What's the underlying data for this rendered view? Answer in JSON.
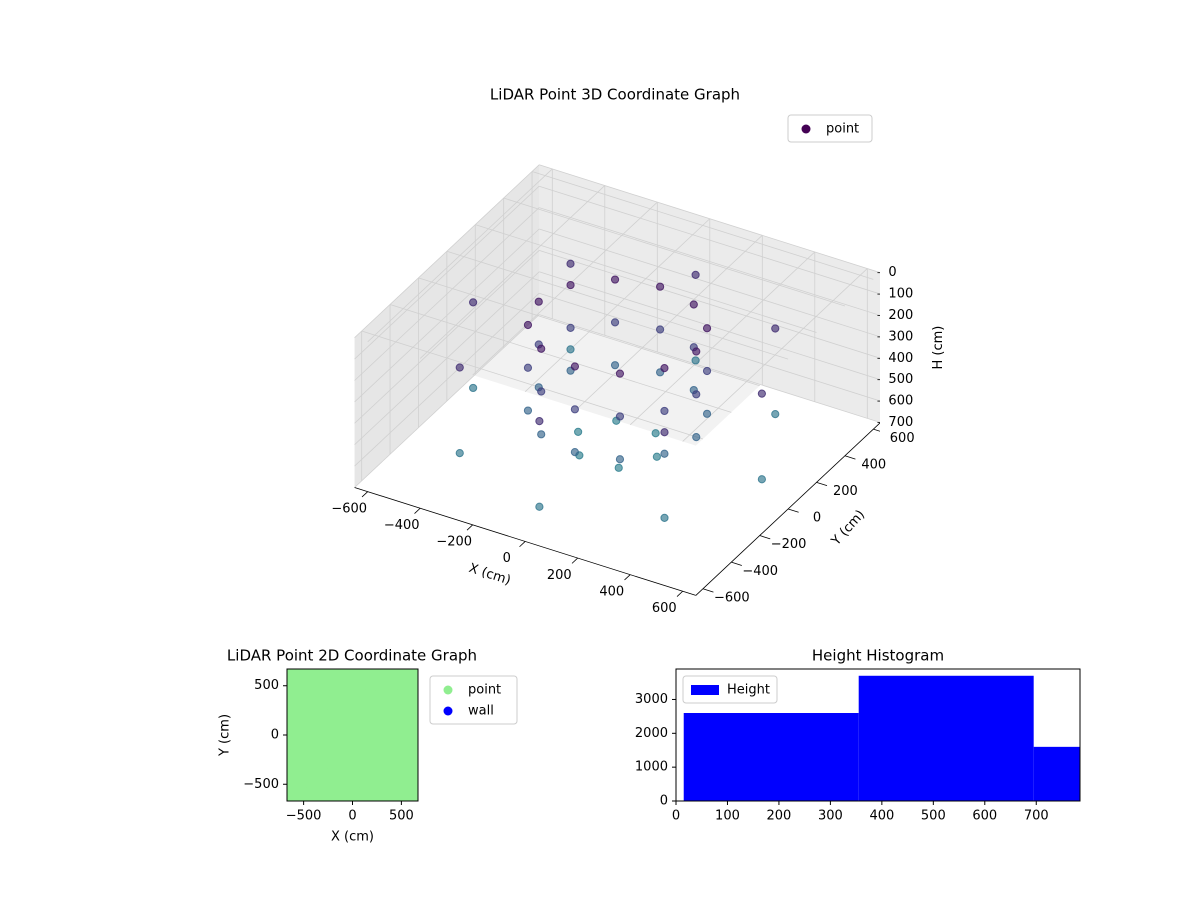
{
  "chart_data": [
    {
      "type": "scatter3d",
      "title": "LiDAR Point 3D Coordinate Graph",
      "xlabel": "X (cm)",
      "ylabel": "Y (cm)",
      "zlabel": "H (cm)",
      "colormap": "viridis",
      "legend": "upper right",
      "grid": true,
      "xlim": [
        -650,
        650
      ],
      "ylim": [
        -650,
        650
      ],
      "zlim": [
        0,
        700
      ],
      "zinvert": true,
      "xticks": [
        {
          "value": -600,
          "label": "−600"
        },
        {
          "value": -400,
          "label": "−400"
        },
        {
          "value": -200,
          "label": "−200"
        },
        0,
        200,
        400,
        600
      ],
      "yticks": [
        {
          "value": -600,
          "label": "−600"
        },
        {
          "value": -400,
          "label": "−400"
        },
        {
          "value": -200,
          "label": "−200"
        },
        0,
        200,
        400,
        600
      ],
      "zticks": [
        0,
        100,
        200,
        300,
        400,
        500,
        600,
        700
      ],
      "series": [
        {
          "name": "point",
          "color": "#440154",
          "x": [
            300,
            260,
            150,
            0,
            -150,
            -260,
            -300,
            -260,
            -150,
            0,
            150,
            260,
            300,
            260,
            150,
            0,
            -150,
            -260,
            -300,
            -260,
            -150,
            0,
            150,
            260,
            300,
            260,
            150,
            0,
            -150,
            -260,
            -300,
            -260,
            -150,
            0,
            150,
            260,
            550,
            390,
            0,
            -390,
            -550,
            -390,
            0,
            390,
            550,
            390,
            0,
            -390,
            -550,
            -390,
            0,
            390,
            150,
            75,
            -75,
            -150,
            -75,
            75
          ],
          "y": [
            0,
            150,
            260,
            300,
            260,
            150,
            0,
            -150,
            -260,
            -300,
            -260,
            -150,
            0,
            150,
            260,
            300,
            260,
            150,
            0,
            -150,
            -260,
            -300,
            -260,
            -150,
            0,
            150,
            260,
            300,
            260,
            150,
            0,
            -150,
            -260,
            -300,
            -260,
            -150,
            0,
            390,
            550,
            390,
            0,
            -390,
            -550,
            -390,
            0,
            390,
            550,
            390,
            0,
            -390,
            -550,
            -390,
            0,
            130,
            130,
            0,
            -130,
            -130
          ],
          "z": [
            100,
            100,
            100,
            100,
            100,
            100,
            100,
            100,
            100,
            100,
            100,
            100,
            300,
            300,
            300,
            300,
            300,
            300,
            300,
            300,
            300,
            300,
            300,
            300,
            500,
            500,
            500,
            500,
            500,
            500,
            500,
            500,
            500,
            500,
            500,
            500,
            200,
            200,
            200,
            200,
            200,
            200,
            200,
            200,
            600,
            600,
            600,
            600,
            600,
            600,
            600,
            600,
            650,
            650,
            650,
            650,
            650,
            650
          ]
        }
      ]
    },
    {
      "type": "scatter",
      "title": "LiDAR Point 2D Coordinate Graph",
      "xlabel": "X (cm)",
      "ylabel": "Y (cm)",
      "legend": "outside right",
      "xlim": [
        -670,
        670
      ],
      "ylim": [
        -670,
        670
      ],
      "xticks": [
        {
          "value": -500,
          "label": "−500"
        },
        0,
        500
      ],
      "yticks": [
        {
          "value": -500,
          "label": "−500"
        },
        0,
        500
      ],
      "series": [
        {
          "name": "point",
          "color": "#90ee90",
          "x": [
            -600,
            -400,
            -200,
            0,
            200,
            400,
            600,
            -600,
            -400,
            -200,
            0,
            200,
            400,
            600,
            -600,
            -400,
            -200,
            0,
            200,
            400,
            600,
            -600,
            -400,
            -200,
            0,
            200,
            400,
            600,
            -600,
            -400,
            -200,
            0,
            200,
            400,
            600,
            -600,
            -400,
            -200,
            0,
            200,
            400,
            600,
            -600,
            -400,
            -200,
            0,
            200,
            400,
            600
          ],
          "y": [
            -600,
            -600,
            -600,
            -600,
            -600,
            -600,
            -600,
            -400,
            -400,
            -400,
            -400,
            -400,
            -400,
            -400,
            -200,
            -200,
            -200,
            -200,
            -200,
            -200,
            -200,
            0,
            0,
            0,
            0,
            0,
            0,
            0,
            200,
            200,
            200,
            200,
            200,
            200,
            200,
            400,
            400,
            400,
            400,
            400,
            400,
            400,
            600,
            600,
            600,
            600,
            600,
            600,
            600
          ]
        },
        {
          "name": "wall",
          "color": "#0000ff",
          "x": [],
          "y": []
        }
      ]
    },
    {
      "type": "histogram",
      "title": "Height Histogram",
      "legend": "upper left",
      "bins": [
        15,
        355,
        695,
        785
      ],
      "xlim": [
        0,
        785
      ],
      "ylim": [
        0,
        3900
      ],
      "xticks": [
        0,
        100,
        200,
        300,
        400,
        500,
        600,
        700
      ],
      "yticks": [
        0,
        1000,
        2000,
        3000
      ],
      "series": [
        {
          "name": "Height",
          "color": "#0000ff",
          "values": [
            2600,
            3700,
            1600
          ]
        }
      ]
    }
  ]
}
